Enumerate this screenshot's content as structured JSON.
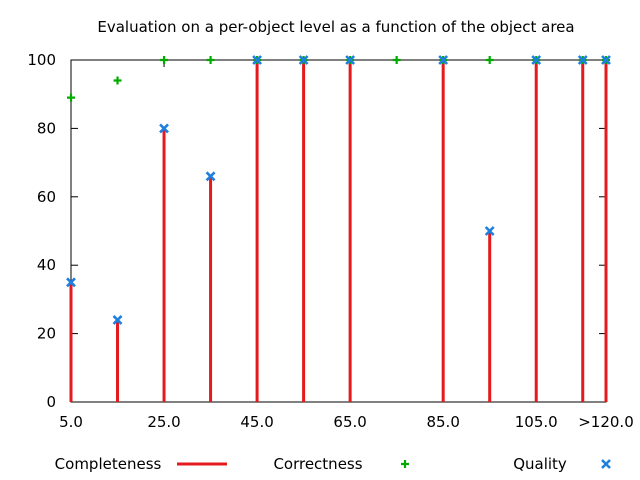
{
  "chart_data": {
    "type": "scatter",
    "title": "Evaluation on a per-object level as a function of the object area",
    "xlabel": "",
    "ylabel": "",
    "xlim": [
      5,
      120
    ],
    "ylim": [
      0,
      100
    ],
    "xticks": [
      {
        "value": 5,
        "label": "5.0"
      },
      {
        "value": 25,
        "label": "25.0"
      },
      {
        "value": 45,
        "label": "45.0"
      },
      {
        "value": 65,
        "label": "65.0"
      },
      {
        "value": 85,
        "label": "85.0"
      },
      {
        "value": 105,
        "label": "105.0"
      },
      {
        "value": 120,
        "label": ">120.0"
      }
    ],
    "yticks": [
      {
        "value": 0,
        "label": "0"
      },
      {
        "value": 20,
        "label": "20"
      },
      {
        "value": 40,
        "label": "40"
      },
      {
        "value": 60,
        "label": "60"
      },
      {
        "value": 80,
        "label": "80"
      },
      {
        "value": 100,
        "label": "100"
      }
    ],
    "legend_position": "bottom",
    "grid": false,
    "series": [
      {
        "name": "Completeness",
        "style": "impulses",
        "color": "#e41a1c",
        "points": [
          {
            "x": 5,
            "y": 35
          },
          {
            "x": 15,
            "y": 24
          },
          {
            "x": 25,
            "y": 80
          },
          {
            "x": 35,
            "y": 66
          },
          {
            "x": 45,
            "y": 100
          },
          {
            "x": 55,
            "y": 100
          },
          {
            "x": 65,
            "y": 100
          },
          {
            "x": 85,
            "y": 100
          },
          {
            "x": 95,
            "y": 50
          },
          {
            "x": 105,
            "y": 100
          },
          {
            "x": 115,
            "y": 100
          },
          {
            "x": 120,
            "y": 100
          }
        ]
      },
      {
        "name": "Correctness",
        "style": "plus",
        "color": "#00aa00",
        "points": [
          {
            "x": 5,
            "y": 89
          },
          {
            "x": 15,
            "y": 94
          },
          {
            "x": 25,
            "y": 100
          },
          {
            "x": 35,
            "y": 100
          },
          {
            "x": 45,
            "y": 100
          },
          {
            "x": 55,
            "y": 100
          },
          {
            "x": 65,
            "y": 100
          },
          {
            "x": 75,
            "y": 100
          },
          {
            "x": 85,
            "y": 100
          },
          {
            "x": 95,
            "y": 100
          },
          {
            "x": 105,
            "y": 100
          },
          {
            "x": 115,
            "y": 100
          },
          {
            "x": 120,
            "y": 100
          }
        ]
      },
      {
        "name": "Quality",
        "style": "cross",
        "color": "#1f7fe0",
        "points": [
          {
            "x": 5,
            "y": 35
          },
          {
            "x": 15,
            "y": 24
          },
          {
            "x": 25,
            "y": 80
          },
          {
            "x": 35,
            "y": 66
          },
          {
            "x": 45,
            "y": 100
          },
          {
            "x": 55,
            "y": 100
          },
          {
            "x": 65,
            "y": 100
          },
          {
            "x": 85,
            "y": 100
          },
          {
            "x": 95,
            "y": 50
          },
          {
            "x": 105,
            "y": 100
          },
          {
            "x": 115,
            "y": 100
          },
          {
            "x": 120,
            "y": 100
          }
        ]
      }
    ]
  }
}
